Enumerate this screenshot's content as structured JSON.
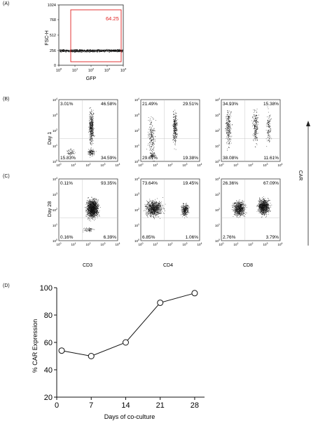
{
  "panels": {
    "a": "(A)",
    "b": "(B)",
    "c": "(C)",
    "d": "(D)"
  },
  "gfp_plot": {
    "ylabel": "FSC-H",
    "xlabel": "GFP",
    "yticks": [
      "0",
      "256",
      "512",
      "768",
      "1024"
    ],
    "xticks": [
      "10^0",
      "10^1",
      "10^2",
      "10^3",
      "10^4"
    ],
    "gate_value": "64.25",
    "gate_color": "#e02020"
  },
  "row_labels": {
    "day1": "Day 1",
    "day28": "Day 28"
  },
  "col_labels": [
    "CD3",
    "CD4",
    "CD8"
  ],
  "axis_arrow_label": "CAR",
  "dot_plots": {
    "day1": [
      {
        "ul": "3.01%",
        "ur": "46.58%",
        "ll": "15.83%",
        "lr": "34.59%"
      },
      {
        "ul": "21.49%",
        "ur": "29.51%",
        "ll": "29.61%",
        "lr": "19.38%"
      },
      {
        "ul": "34.93%",
        "ur": "15.38%",
        "ll": "38.08%",
        "lr": "11.61%"
      }
    ],
    "day28": [
      {
        "ul": "0.11%",
        "ur": "93.35%",
        "ll": "0.16%",
        "lr": "6.39%"
      },
      {
        "ul": "73.64%",
        "ur": "19.45%",
        "ll": "6.85%",
        "lr": "1.06%"
      },
      {
        "ul": "26.36%",
        "ur": "67.09%",
        "ll": "2.76%",
        "lr": "3.79%"
      }
    ]
  },
  "chart_data": {
    "type": "line",
    "xlabel": "Days of co-culture",
    "ylabel": "% CAR Expression",
    "x": [
      1,
      7,
      14,
      21,
      28
    ],
    "values": [
      54,
      50,
      60,
      89,
      96
    ],
    "xlim": [
      0,
      30
    ],
    "ylim": [
      20,
      100
    ],
    "xticks": [
      0,
      7,
      14,
      21,
      28
    ],
    "yticks": [
      20,
      40,
      60,
      80,
      100
    ],
    "marker": "open-circle",
    "grid": false
  }
}
